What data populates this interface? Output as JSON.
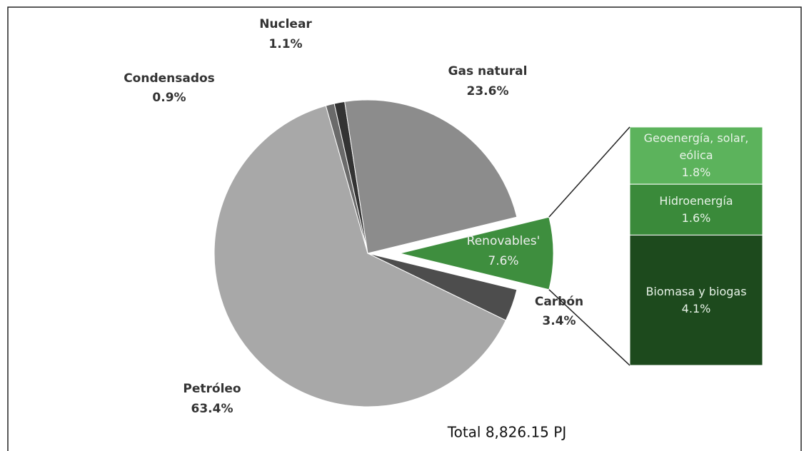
{
  "chart_data": {
    "type": "pie",
    "categories": [
      "Renovables'",
      "Carbón",
      "Petróleo",
      "Condensados",
      "Nuclear",
      "Gas natural"
    ],
    "values": [
      7.6,
      3.4,
      63.4,
      0.9,
      1.1,
      23.6
    ],
    "value_labels": [
      "7.6%",
      "3.4%",
      "63.4%",
      "0.9%",
      "1.1%",
      "23.6%"
    ],
    "colors": [
      "#3e8e3e",
      "#4d4d4d",
      "#a8a8a8",
      "#6a6a6a",
      "#333333",
      "#8c8c8c"
    ],
    "breakdown": {
      "categories": [
        "Geoenergía, solar, eólica",
        "Hidroenergía",
        "Biomasa y biogas"
      ],
      "values": [
        1.8,
        1.6,
        4.1
      ],
      "value_labels": [
        "1.8%",
        "1.6%",
        "4.1%"
      ],
      "colors": [
        "#5cb35c",
        "#3a8a3a",
        "#1d4a1d"
      ]
    },
    "annotation": "Total 8,826.15 PJ"
  }
}
